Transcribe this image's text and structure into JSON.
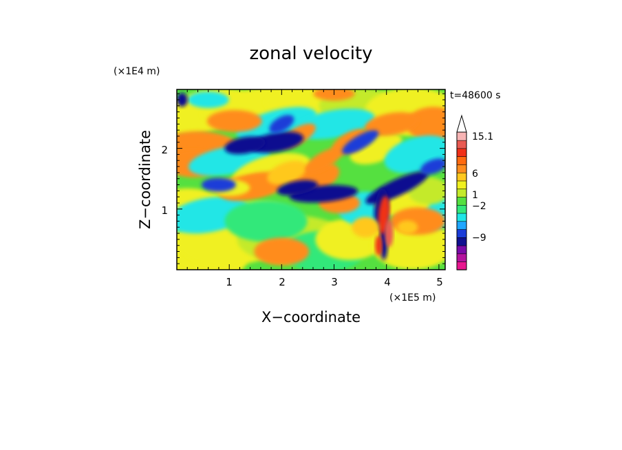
{
  "chart_data": {
    "type": "heatmap",
    "title": "zonal velocity",
    "xlabel": "X−coordinate",
    "ylabel": "Z−coordinate",
    "x_unit": "(×1E5 m)",
    "y_unit": "(×1E4 m)",
    "time_label": "t=48600 s",
    "xlim": [
      0,
      5.12
    ],
    "ylim": [
      0,
      2.97
    ],
    "x_ticks": [
      "1",
      "2",
      "3",
      "4",
      "5"
    ],
    "y_ticks": [
      "1",
      "2"
    ],
    "grid": false,
    "legend": "colorbar-right",
    "colorbar": {
      "tick_labels": [
        "15.1",
        "6",
        "1",
        "−2",
        "−9"
      ],
      "colors": [
        "#e8168f",
        "#b4129e",
        "#7a0aa8",
        "#101090",
        "#1a3cd8",
        "#1fa6ff",
        "#20e6e6",
        "#33e87a",
        "#55e040",
        "#c4ea2a",
        "#f0f020",
        "#ffc81e",
        "#ff8c1e",
        "#ff6a10",
        "#f03018",
        "#e85a52",
        "#f7b4b4"
      ]
    },
    "features": [
      {
        "x": 1.8,
        "y": 2.1,
        "value": -9,
        "label": "blue jet upper-left"
      },
      {
        "x": 2.7,
        "y": 1.3,
        "value": -9,
        "label": "blue jet center"
      },
      {
        "x": 3.95,
        "y": 0.8,
        "value": 6,
        "label": "red plume"
      },
      {
        "x": 4.3,
        "y": 1.5,
        "value": -9,
        "label": "blue band right"
      },
      {
        "x": 1.5,
        "y": 1.4,
        "value": 4,
        "label": "orange patch"
      }
    ]
  }
}
